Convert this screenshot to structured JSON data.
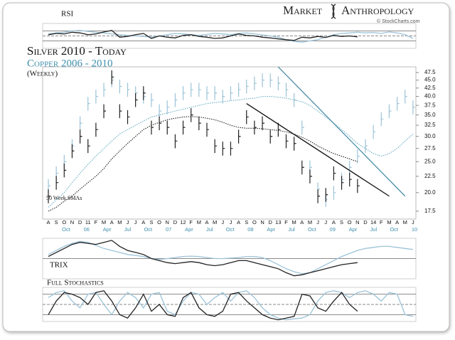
{
  "header": {
    "logo_left": "Market",
    "logo_right": "Anthropology",
    "credit": "© StockCharts.com"
  },
  "chart_data": [
    {
      "type": "price-bars",
      "title": "Silver 2010 - Today",
      "subtitle": "Copper 2006 - 2010",
      "note": "(Weekly)",
      "log_scale": true,
      "ylim": [
        16.7,
        49
      ],
      "yticks": [
        47.5,
        {
          "value": 45,
          "label": "45.0"
        },
        42.5,
        {
          "value": 40,
          "label": "40.0"
        },
        37.5,
        {
          "value": 35,
          "label": "35.0"
        },
        32.5,
        {
          "value": 30,
          "label": "30.0"
        },
        27.5,
        {
          "value": 25,
          "label": "25.0"
        },
        22.5,
        {
          "value": 20,
          "label": "20.0"
        },
        17.5
      ],
      "categories": [
        "A",
        "S",
        "O",
        "N",
        "D",
        "11",
        "F",
        "M",
        "A",
        "M",
        "J",
        "J",
        "A",
        "S",
        "O",
        "N",
        "D",
        "12",
        "F",
        "M",
        "A",
        "M",
        "J",
        "J",
        "A",
        "S",
        "O",
        "N",
        "D",
        "13",
        "F",
        "M",
        "A",
        "M",
        "J",
        "J",
        "A",
        "S",
        "O",
        "N",
        "D",
        "14",
        "F",
        "M",
        "A",
        "M",
        "J"
      ],
      "secondary_categories": [
        "Oct",
        "06",
        "Apr",
        "Jul",
        "Oct",
        "07",
        "Apr",
        "Jul",
        "Oct",
        "08",
        "Apr",
        "Jul",
        "Oct",
        "09",
        "Apr",
        "Jul",
        "Oct",
        "10"
      ],
      "secondary_color": "#3f8fae",
      "series": [
        {
          "style": "bars",
          "color": "#9cc3d8",
          "values": [
            21,
            23,
            25,
            28,
            33,
            38,
            40,
            42,
            45,
            43,
            42,
            41,
            40,
            39,
            36,
            37,
            39,
            41,
            42,
            42,
            41,
            41,
            40,
            41,
            42,
            43,
            44,
            45,
            45,
            44,
            42,
            39,
            32,
            24,
            20.5,
            19,
            20,
            22,
            24,
            26,
            28,
            31,
            34,
            36,
            38,
            40,
            37
          ]
        },
        {
          "style": "bars",
          "color": "#222222",
          "values": [
            19.5,
            21.5,
            23.5,
            27,
            30,
            28,
            31.5,
            36,
            46,
            36,
            34.5,
            39,
            41,
            32,
            33,
            32,
            29,
            32,
            35,
            33,
            31.5,
            28,
            27.5,
            27.5,
            30,
            34.5,
            32,
            33,
            30,
            31.5,
            29,
            28.5,
            24,
            22.5,
            19.5,
            19.7,
            23,
            21.5,
            22,
            21,
            null,
            null,
            null,
            null,
            null,
            null,
            null
          ]
        },
        {
          "style": "dotted",
          "color": "#6aaec4",
          "values": [
            18,
            19,
            20,
            21.5,
            23,
            24.5,
            26,
            27.5,
            29,
            30.5,
            31.5,
            32.5,
            33.5,
            34.5,
            35,
            35.5,
            36,
            36.5,
            37,
            37.5,
            38,
            38.3,
            38.5,
            38.8,
            39,
            39.3,
            39.5,
            40,
            40,
            39.8,
            39.5,
            39,
            38.5,
            37.5,
            36,
            34.5,
            33,
            31.5,
            30,
            28.5,
            27.5,
            26.5,
            26,
            26.5,
            27.5,
            29,
            30.5
          ]
        },
        {
          "style": "dotted",
          "color": "#222222",
          "values": [
            17.5,
            18,
            18.8,
            19.5,
            20.5,
            21.5,
            22.5,
            23.8,
            25.5,
            27,
            28.5,
            30,
            31.5,
            32.5,
            33.2,
            33.8,
            34.2,
            34.5,
            34.6,
            34.5,
            34.2,
            33.8,
            33.2,
            32.5,
            32,
            31.8,
            31.8,
            31.7,
            31.5,
            31.3,
            31,
            30.5,
            29.8,
            29,
            28,
            27.2,
            26.5,
            26,
            25.5,
            25,
            null,
            null,
            null,
            null,
            null,
            null,
            null
          ]
        }
      ],
      "trendlines": [
        {
          "color": "#111111",
          "x": [
            25,
            43
          ],
          "y": [
            38,
            19.5
          ]
        },
        {
          "color": "#4a8ea8",
          "x": [
            29,
            45
          ],
          "y": [
            49.5,
            19.5
          ]
        }
      ],
      "annotations": [
        "50 Week SMAs"
      ]
    },
    {
      "type": "line",
      "title": "RSI",
      "ylim": [
        0,
        100
      ],
      "yticks": [
        30,
        50,
        70
      ],
      "series": [
        {
          "color": "#9cc3d8",
          "values": [
            58,
            62,
            65,
            70,
            72,
            68,
            65,
            62,
            58,
            55,
            52,
            50,
            48,
            45,
            50,
            55,
            60,
            58,
            55,
            52,
            56,
            60,
            58,
            55,
            60,
            62,
            58,
            54,
            50,
            45,
            35,
            28,
            25,
            30,
            35,
            45,
            55,
            60,
            62,
            65,
            62,
            64,
            60,
            66,
            62,
            55,
            40
          ]
        },
        {
          "color": "#222222",
          "values": [
            55,
            60,
            58,
            65,
            62,
            55,
            58,
            66,
            72,
            45,
            48,
            55,
            60,
            40,
            50,
            45,
            42,
            52,
            55,
            48,
            45,
            40,
            42,
            50,
            58,
            52,
            50,
            45,
            42,
            38,
            35,
            32,
            45,
            42,
            48,
            44,
            52,
            48,
            50,
            46
          ]
        }
      ]
    },
    {
      "type": "line",
      "title": "TRIX",
      "ylim": [
        -1,
        1
      ],
      "yticks": [
        0
      ],
      "series": [
        {
          "color": "#9cc3d8",
          "values": [
            0.2,
            0.4,
            0.6,
            0.75,
            0.85,
            0.8,
            0.65,
            0.5,
            0.4,
            0.3,
            0.2,
            0.15,
            0.1,
            0,
            -0.05,
            0,
            0.05,
            0.1,
            0.12,
            0.1,
            0.05,
            0,
            0,
            0.02,
            0.05,
            0.1,
            0.1,
            0.05,
            -0.1,
            -0.3,
            -0.5,
            -0.65,
            -0.75,
            -0.7,
            -0.5,
            -0.3,
            -0.1,
            0.1,
            0.25,
            0.4,
            0.5,
            0.55,
            0.6,
            0.6,
            0.55,
            0.5,
            0.45
          ]
        },
        {
          "color": "#222222",
          "values": [
            0.1,
            0.3,
            0.5,
            0.7,
            0.8,
            0.75,
            0.7,
            0.8,
            0.9,
            0.6,
            0.4,
            0.3,
            0.2,
            0,
            -0.1,
            -0.2,
            -0.25,
            -0.2,
            -0.15,
            -0.2,
            -0.3,
            -0.35,
            -0.3,
            -0.2,
            -0.1,
            -0.1,
            -0.2,
            -0.3,
            -0.4,
            -0.5,
            -0.7,
            -0.85,
            -0.8,
            -0.7,
            -0.6,
            -0.5,
            -0.4,
            -0.3,
            -0.25,
            -0.2
          ]
        }
      ]
    },
    {
      "type": "line",
      "title": "Full Stochastics",
      "ylim": [
        0,
        100
      ],
      "yticks": [
        20,
        50,
        80
      ],
      "series": [
        {
          "color": "#9cc3d8",
          "values": [
            70,
            85,
            90,
            60,
            40,
            80,
            85,
            50,
            20,
            60,
            85,
            70,
            40,
            80,
            85,
            30,
            20,
            60,
            85,
            80,
            50,
            70,
            85,
            60,
            85,
            90,
            70,
            40,
            20,
            10,
            5,
            8,
            10,
            20,
            60,
            85,
            90,
            85,
            70,
            85,
            90,
            80,
            60,
            85,
            80,
            20,
            15
          ]
        },
        {
          "color": "#222222",
          "values": [
            20,
            60,
            85,
            80,
            70,
            50,
            85,
            90,
            60,
            20,
            10,
            40,
            80,
            30,
            50,
            20,
            15,
            70,
            85,
            40,
            20,
            15,
            30,
            80,
            85,
            60,
            40,
            20,
            10,
            5,
            10,
            15,
            80,
            75,
            40,
            30,
            60,
            85,
            50,
            30
          ]
        }
      ]
    }
  ]
}
